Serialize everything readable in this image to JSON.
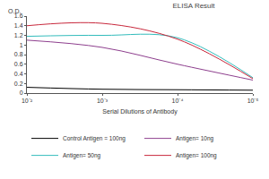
{
  "chart_data": {
    "type": "line",
    "title": "ELISA Result",
    "x_label": "Serial Dilutions of Antibody",
    "y_label": "O.D.",
    "x": [
      0.01,
      0.001,
      0.0001,
      1e-05
    ],
    "series": [
      {
        "name": "Control Antigen = 100ng",
        "color": "#000000",
        "values": [
          0.12,
          0.08,
          0.07,
          0.06
        ]
      },
      {
        "name": "Antigen= 10ng",
        "color": "#8e3f8e",
        "values": [
          1.1,
          0.95,
          0.6,
          0.27
        ]
      },
      {
        "name": "Antigen= 50ng",
        "color": "#33bcbc",
        "values": [
          1.18,
          1.2,
          1.15,
          0.32
        ]
      },
      {
        "name": "Antigen= 100ng",
        "color": "#c8283c",
        "values": [
          1.4,
          1.45,
          1.12,
          0.3
        ]
      }
    ],
    "log": "x",
    "xlim": [
      0.01,
      1e-05
    ],
    "xticks": [
      {
        "value": 0.01,
        "label": "10⁻²"
      },
      {
        "value": 0.001,
        "label": "10⁻³"
      },
      {
        "value": 0.0001,
        "label": "10⁻⁴"
      },
      {
        "value": 1e-05,
        "label": "10⁻⁵"
      }
    ],
    "ylim": [
      0,
      1.6
    ],
    "yticks": [
      0,
      0.2,
      0.4,
      0.6,
      0.8,
      1,
      1.2,
      1.4,
      1.6
    ],
    "grid": false,
    "legend": "bottom"
  }
}
